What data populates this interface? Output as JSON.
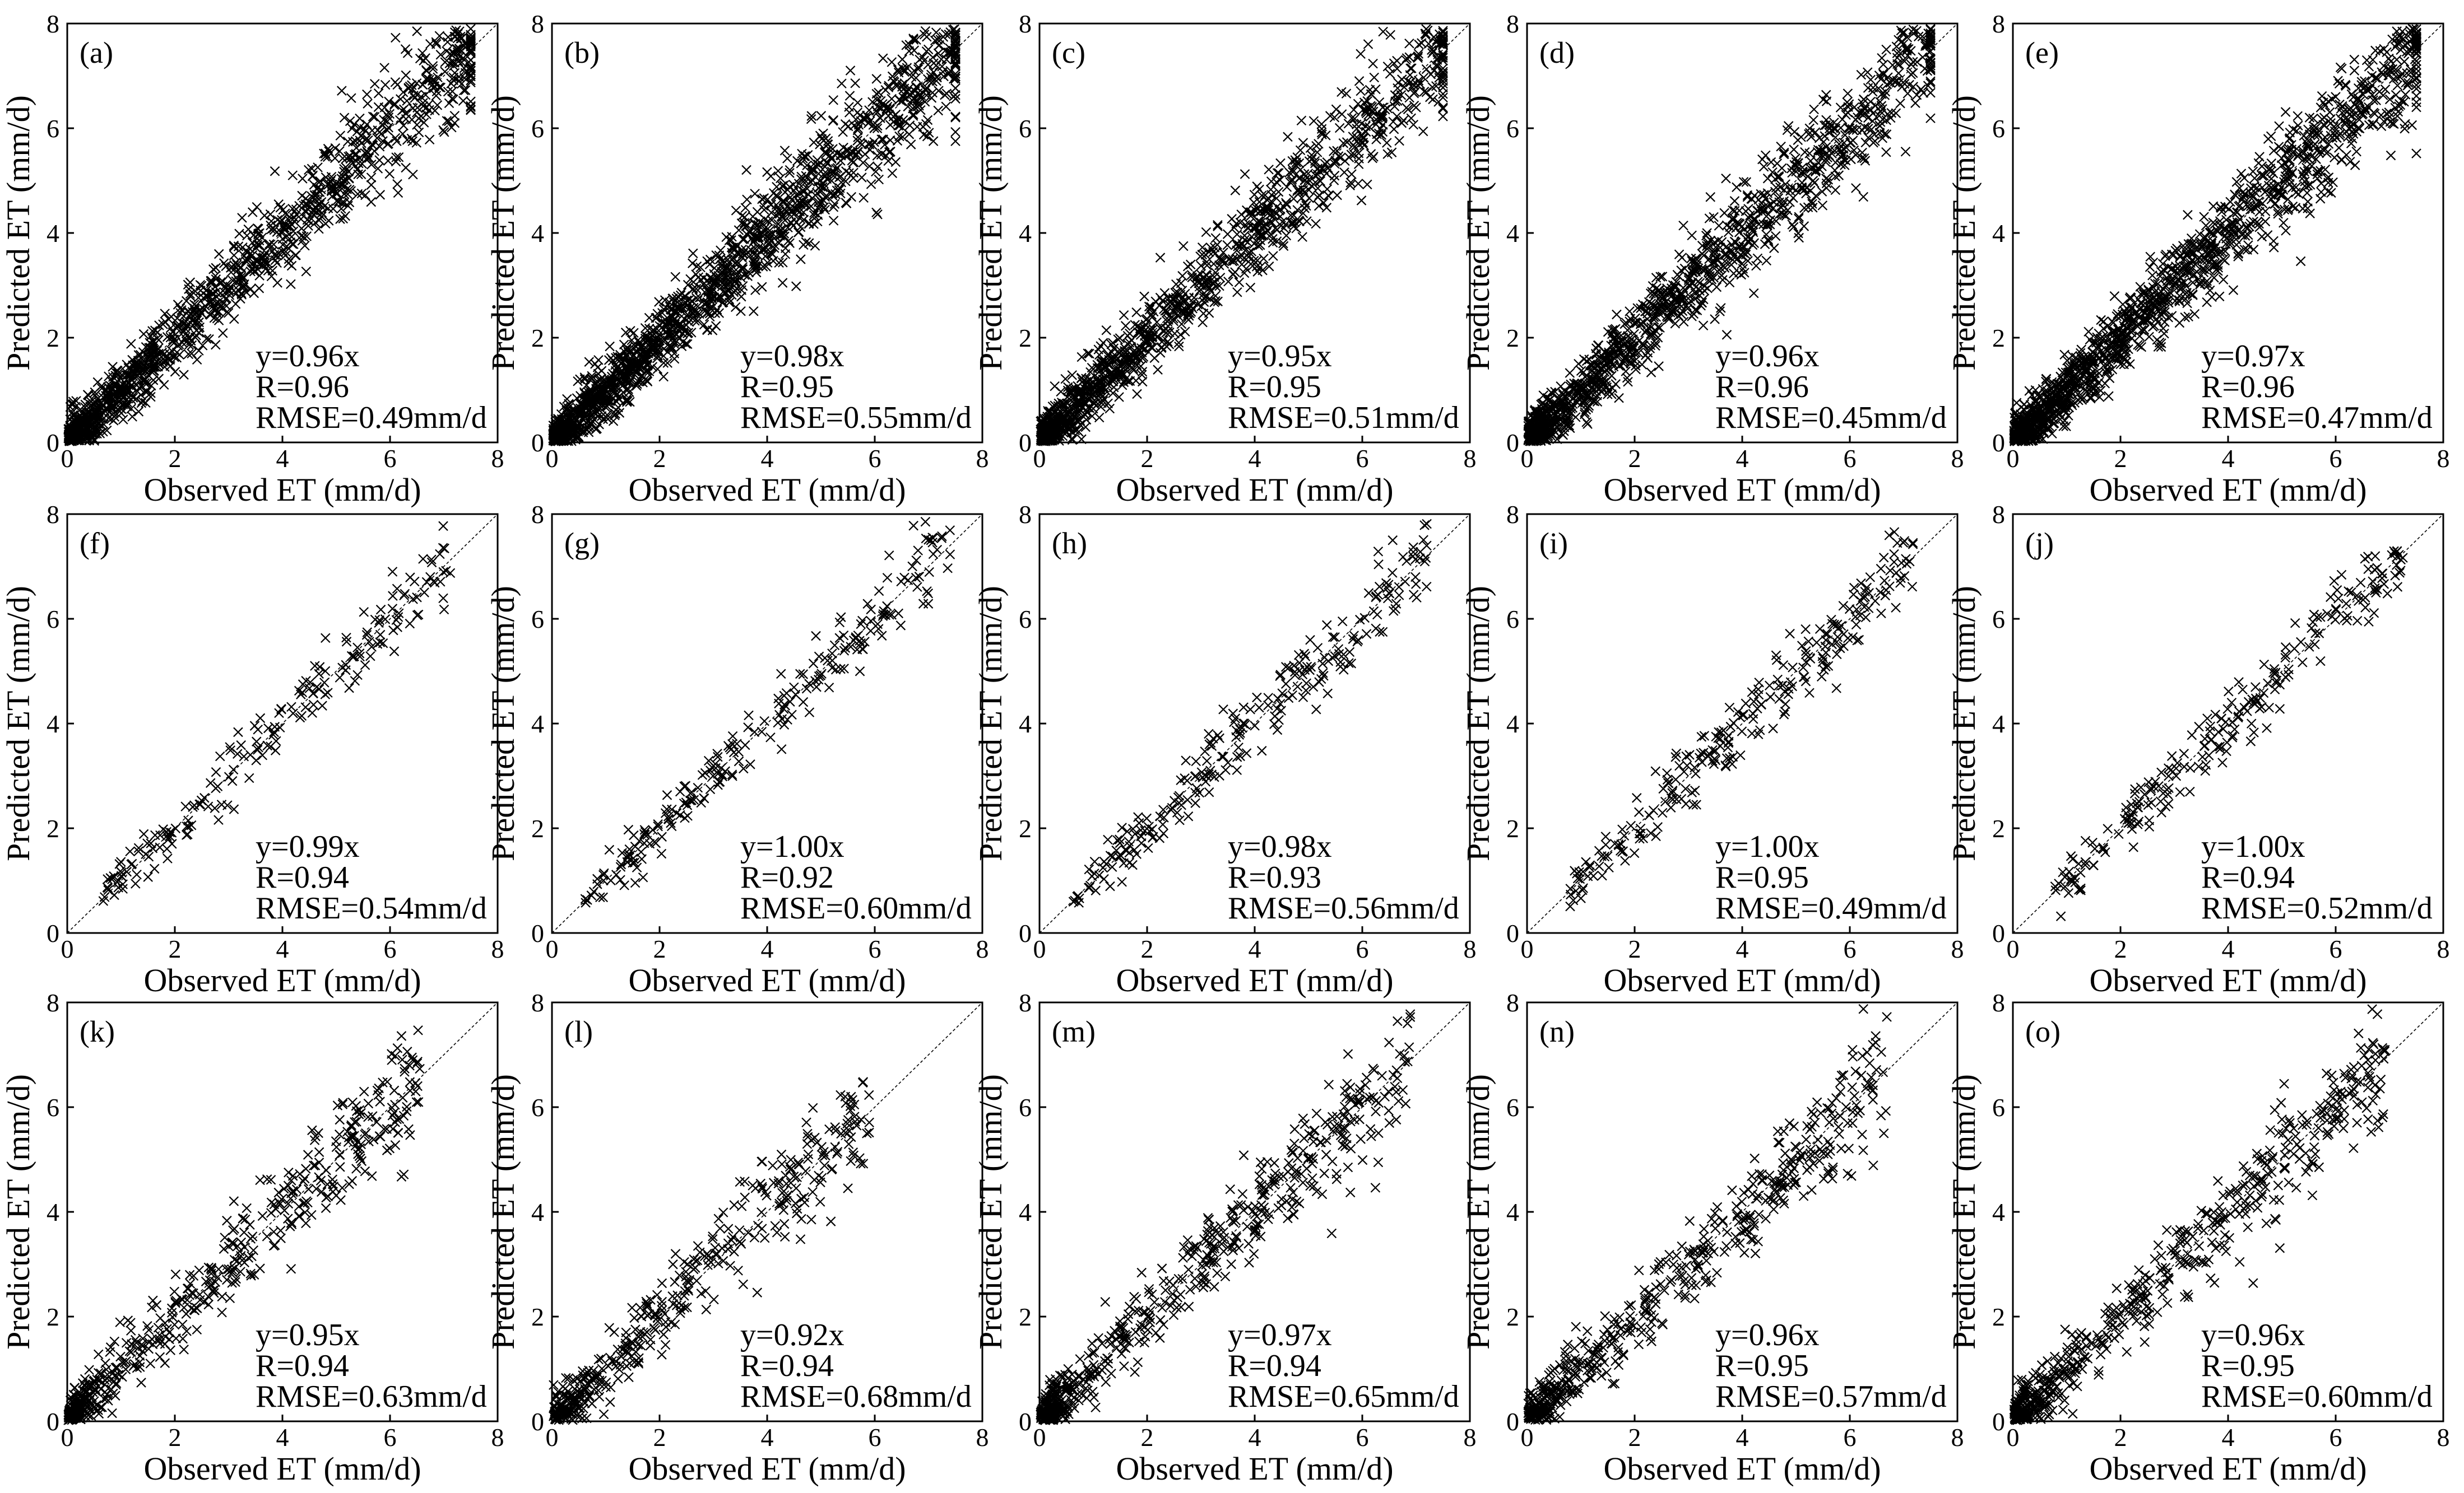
{
  "figure": {
    "colors": {
      "background": "#ffffff",
      "ink": "#000000"
    },
    "marker": "x"
  },
  "chart_data": [
    {
      "panel": "(a)",
      "type": "scatter",
      "n": 1200,
      "spread": "high",
      "xlabel": "Observed ET (mm/d)",
      "ylabel": "Predicted ET (mm/d)",
      "xlim": [
        0,
        8
      ],
      "ylim": [
        0,
        8
      ],
      "xticks": [
        0,
        2,
        4,
        6,
        8
      ],
      "yticks": [
        0,
        2,
        4,
        6,
        8
      ],
      "reference_line": "1:1",
      "fit": "y=0.96x",
      "R": "R=0.96",
      "RMSE": "RMSE=0.49mm/d",
      "x_range": [
        0,
        7.5
      ]
    },
    {
      "panel": "(b)",
      "type": "scatter",
      "n": 1500,
      "spread": "high",
      "xlabel": "Observed ET (mm/d)",
      "ylabel": "Predicted ET (mm/d)",
      "xlim": [
        0,
        8
      ],
      "ylim": [
        0,
        8
      ],
      "xticks": [
        0,
        2,
        4,
        6,
        8
      ],
      "yticks": [
        0,
        2,
        4,
        6,
        8
      ],
      "reference_line": "1:1",
      "fit": "y=0.98x",
      "R": "R=0.95",
      "RMSE": "RMSE=0.55mm/d",
      "x_range": [
        0,
        7.5
      ]
    },
    {
      "panel": "(c)",
      "type": "scatter",
      "n": 1200,
      "spread": "high",
      "xlabel": "Observed ET (mm/d)",
      "ylabel": "Predicted ET (mm/d)",
      "xlim": [
        0,
        8
      ],
      "ylim": [
        0,
        8
      ],
      "xticks": [
        0,
        2,
        4,
        6,
        8
      ],
      "yticks": [
        0,
        2,
        4,
        6,
        8
      ],
      "reference_line": "1:1",
      "fit": "y=0.95x",
      "R": "R=0.95",
      "RMSE": "RMSE=0.51mm/d",
      "x_range": [
        0,
        7.5
      ]
    },
    {
      "panel": "(d)",
      "type": "scatter",
      "n": 1200,
      "spread": "high",
      "xlabel": "Observed ET (mm/d)",
      "ylabel": "Predicted ET (mm/d)",
      "xlim": [
        0,
        8
      ],
      "ylim": [
        0,
        8
      ],
      "xticks": [
        0,
        2,
        4,
        6,
        8
      ],
      "yticks": [
        0,
        2,
        4,
        6,
        8
      ],
      "reference_line": "1:1",
      "fit": "y=0.96x",
      "R": "R=0.96",
      "RMSE": "RMSE=0.45mm/d",
      "x_range": [
        0,
        7.5
      ]
    },
    {
      "panel": "(e)",
      "type": "scatter",
      "n": 1400,
      "spread": "high",
      "xlabel": "Observed ET (mm/d)",
      "ylabel": "Predicted ET (mm/d)",
      "xlim": [
        0,
        8
      ],
      "ylim": [
        0,
        8
      ],
      "xticks": [
        0,
        2,
        4,
        6,
        8
      ],
      "yticks": [
        0,
        2,
        4,
        6,
        8
      ],
      "reference_line": "1:1",
      "fit": "y=0.97x",
      "R": "R=0.96",
      "RMSE": "RMSE=0.47mm/d",
      "x_range": [
        0,
        7.5
      ]
    },
    {
      "panel": "(f)",
      "type": "scatter",
      "n": 200,
      "spread": "low",
      "xlabel": "Observed ET (mm/d)",
      "ylabel": "Predicted ET (mm/d)",
      "xlim": [
        0,
        8
      ],
      "ylim": [
        0,
        8
      ],
      "xticks": [
        0,
        2,
        4,
        6,
        8
      ],
      "yticks": [
        0,
        2,
        4,
        6,
        8
      ],
      "reference_line": "1:1",
      "fit": "y=0.99x",
      "R": "R=0.94",
      "RMSE": "RMSE=0.54mm/d",
      "x_range": [
        0.6,
        7.2
      ]
    },
    {
      "panel": "(g)",
      "type": "scatter",
      "n": 230,
      "spread": "low",
      "xlabel": "Observed ET (mm/d)",
      "ylabel": "Predicted ET (mm/d)",
      "xlim": [
        0,
        8
      ],
      "ylim": [
        0,
        8
      ],
      "xticks": [
        0,
        2,
        4,
        6,
        8
      ],
      "yticks": [
        0,
        2,
        4,
        6,
        8
      ],
      "reference_line": "1:1",
      "fit": "y=1.00x",
      "R": "R=0.92",
      "RMSE": "RMSE=0.60mm/d",
      "x_range": [
        0.6,
        7.4
      ]
    },
    {
      "panel": "(h)",
      "type": "scatter",
      "n": 250,
      "spread": "low",
      "xlabel": "Observed ET (mm/d)",
      "ylabel": "Predicted ET (mm/d)",
      "xlim": [
        0,
        8
      ],
      "ylim": [
        0,
        8
      ],
      "xticks": [
        0,
        2,
        4,
        6,
        8
      ],
      "yticks": [
        0,
        2,
        4,
        6,
        8
      ],
      "reference_line": "1:1",
      "fit": "y=0.98x",
      "R": "R=0.93",
      "RMSE": "RMSE=0.56mm/d",
      "x_range": [
        0.6,
        7.2
      ]
    },
    {
      "panel": "(i)",
      "type": "scatter",
      "n": 250,
      "spread": "low",
      "xlabel": "Observed ET (mm/d)",
      "ylabel": "Predicted ET (mm/d)",
      "xlim": [
        0,
        8
      ],
      "ylim": [
        0,
        8
      ],
      "xticks": [
        0,
        2,
        4,
        6,
        8
      ],
      "yticks": [
        0,
        2,
        4,
        6,
        8
      ],
      "reference_line": "1:1",
      "fit": "y=1.00x",
      "R": "R=0.95",
      "RMSE": "RMSE=0.49mm/d",
      "x_range": [
        0.7,
        7.2
      ]
    },
    {
      "panel": "(j)",
      "type": "scatter",
      "n": 230,
      "spread": "low",
      "xlabel": "Observed ET (mm/d)",
      "ylabel": "Predicted ET (mm/d)",
      "xlim": [
        0,
        8
      ],
      "ylim": [
        0,
        8
      ],
      "xticks": [
        0,
        2,
        4,
        6,
        8
      ],
      "yticks": [
        0,
        2,
        4,
        6,
        8
      ],
      "reference_line": "1:1",
      "fit": "y=1.00x",
      "R": "R=0.94",
      "RMSE": "RMSE=0.52mm/d",
      "x_range": [
        0.7,
        7.3
      ]
    },
    {
      "panel": "(k)",
      "type": "scatter",
      "n": 520,
      "spread": "medium",
      "xlabel": "Observed ET (mm/d)",
      "ylabel": "Predicted ET (mm/d)",
      "xlim": [
        0,
        8
      ],
      "ylim": [
        0,
        8
      ],
      "xticks": [
        0,
        2,
        4,
        6,
        8
      ],
      "yticks": [
        0,
        2,
        4,
        6,
        8
      ],
      "reference_line": "1:1",
      "fit": "y=0.95x",
      "R": "R=0.94",
      "RMSE": "RMSE=0.63mm/d",
      "x_range": [
        0,
        6.6
      ]
    },
    {
      "panel": "(l)",
      "type": "scatter",
      "n": 420,
      "spread": "medium",
      "xlabel": "Observed ET (mm/d)",
      "ylabel": "Predicted ET (mm/d)",
      "xlim": [
        0,
        8
      ],
      "ylim": [
        0,
        8
      ],
      "xticks": [
        0,
        2,
        4,
        6,
        8
      ],
      "yticks": [
        0,
        2,
        4,
        6,
        8
      ],
      "reference_line": "1:1",
      "fit": "y=0.92x",
      "R": "R=0.94",
      "RMSE": "RMSE=0.68mm/d",
      "x_range": [
        0,
        5.9
      ]
    },
    {
      "panel": "(m)",
      "type": "scatter",
      "n": 560,
      "spread": "medium",
      "xlabel": "Observed ET (mm/d)",
      "ylabel": "Predicted ET (mm/d)",
      "xlim": [
        0,
        8
      ],
      "ylim": [
        0,
        8
      ],
      "xticks": [
        0,
        2,
        4,
        6,
        8
      ],
      "yticks": [
        0,
        2,
        4,
        6,
        8
      ],
      "reference_line": "1:1",
      "fit": "y=0.97x",
      "R": "R=0.94",
      "RMSE": "RMSE=0.65mm/d",
      "x_range": [
        0,
        6.9
      ]
    },
    {
      "panel": "(n)",
      "type": "scatter",
      "n": 520,
      "spread": "medium",
      "xlabel": "Observed ET (mm/d)",
      "ylabel": "Predicted ET (mm/d)",
      "xlim": [
        0,
        8
      ],
      "ylim": [
        0,
        8
      ],
      "xticks": [
        0,
        2,
        4,
        6,
        8
      ],
      "yticks": [
        0,
        2,
        4,
        6,
        8
      ],
      "reference_line": "1:1",
      "fit": "y=0.96x",
      "R": "R=0.95",
      "RMSE": "RMSE=0.57mm/d",
      "x_range": [
        0,
        6.7
      ]
    },
    {
      "panel": "(o)",
      "type": "scatter",
      "n": 560,
      "spread": "medium",
      "xlabel": "Observed ET (mm/d)",
      "ylabel": "Predicted ET (mm/d)",
      "xlim": [
        0,
        8
      ],
      "ylim": [
        0,
        8
      ],
      "xticks": [
        0,
        2,
        4,
        6,
        8
      ],
      "yticks": [
        0,
        2,
        4,
        6,
        8
      ],
      "reference_line": "1:1",
      "fit": "y=0.96x",
      "R": "R=0.95",
      "RMSE": "RMSE=0.60mm/d",
      "x_range": [
        0,
        7.0
      ]
    }
  ]
}
